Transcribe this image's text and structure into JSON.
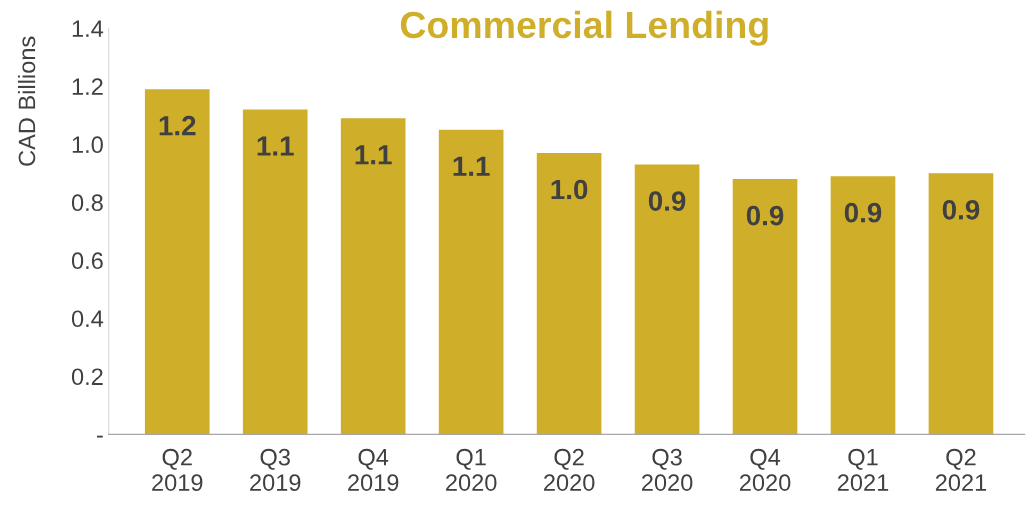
{
  "chart_data": {
    "type": "bar",
    "title": "Commercial Lending",
    "ylabel": "CAD Billions",
    "categories": [
      "Q2\n2019",
      "Q3\n2019",
      "Q4\n2019",
      "Q1\n2020",
      "Q2\n2020",
      "Q3\n2020",
      "Q4\n2020",
      "Q1\n2021",
      "Q2\n2021"
    ],
    "values": [
      1.19,
      1.12,
      1.09,
      1.05,
      0.97,
      0.93,
      0.88,
      0.89,
      0.9
    ],
    "value_labels": [
      "1.2",
      "1.1",
      "1.1",
      "1.1",
      "1.0",
      "0.9",
      "0.9",
      "0.9",
      "0.9"
    ],
    "color": "#cfae2a",
    "ylim": [
      0,
      1.4
    ],
    "yticks": [
      {
        "value": 0,
        "label": "-"
      },
      {
        "value": 0.2,
        "label": "0.2"
      },
      {
        "value": 0.4,
        "label": "0.4"
      },
      {
        "value": 0.6,
        "label": "0.6"
      },
      {
        "value": 0.8,
        "label": "0.8"
      },
      {
        "value": 1.0,
        "label": "1.0"
      },
      {
        "value": 1.2,
        "label": "1.2"
      },
      {
        "value": 1.4,
        "label": "1.4"
      }
    ],
    "grid": false,
    "legend": false
  }
}
